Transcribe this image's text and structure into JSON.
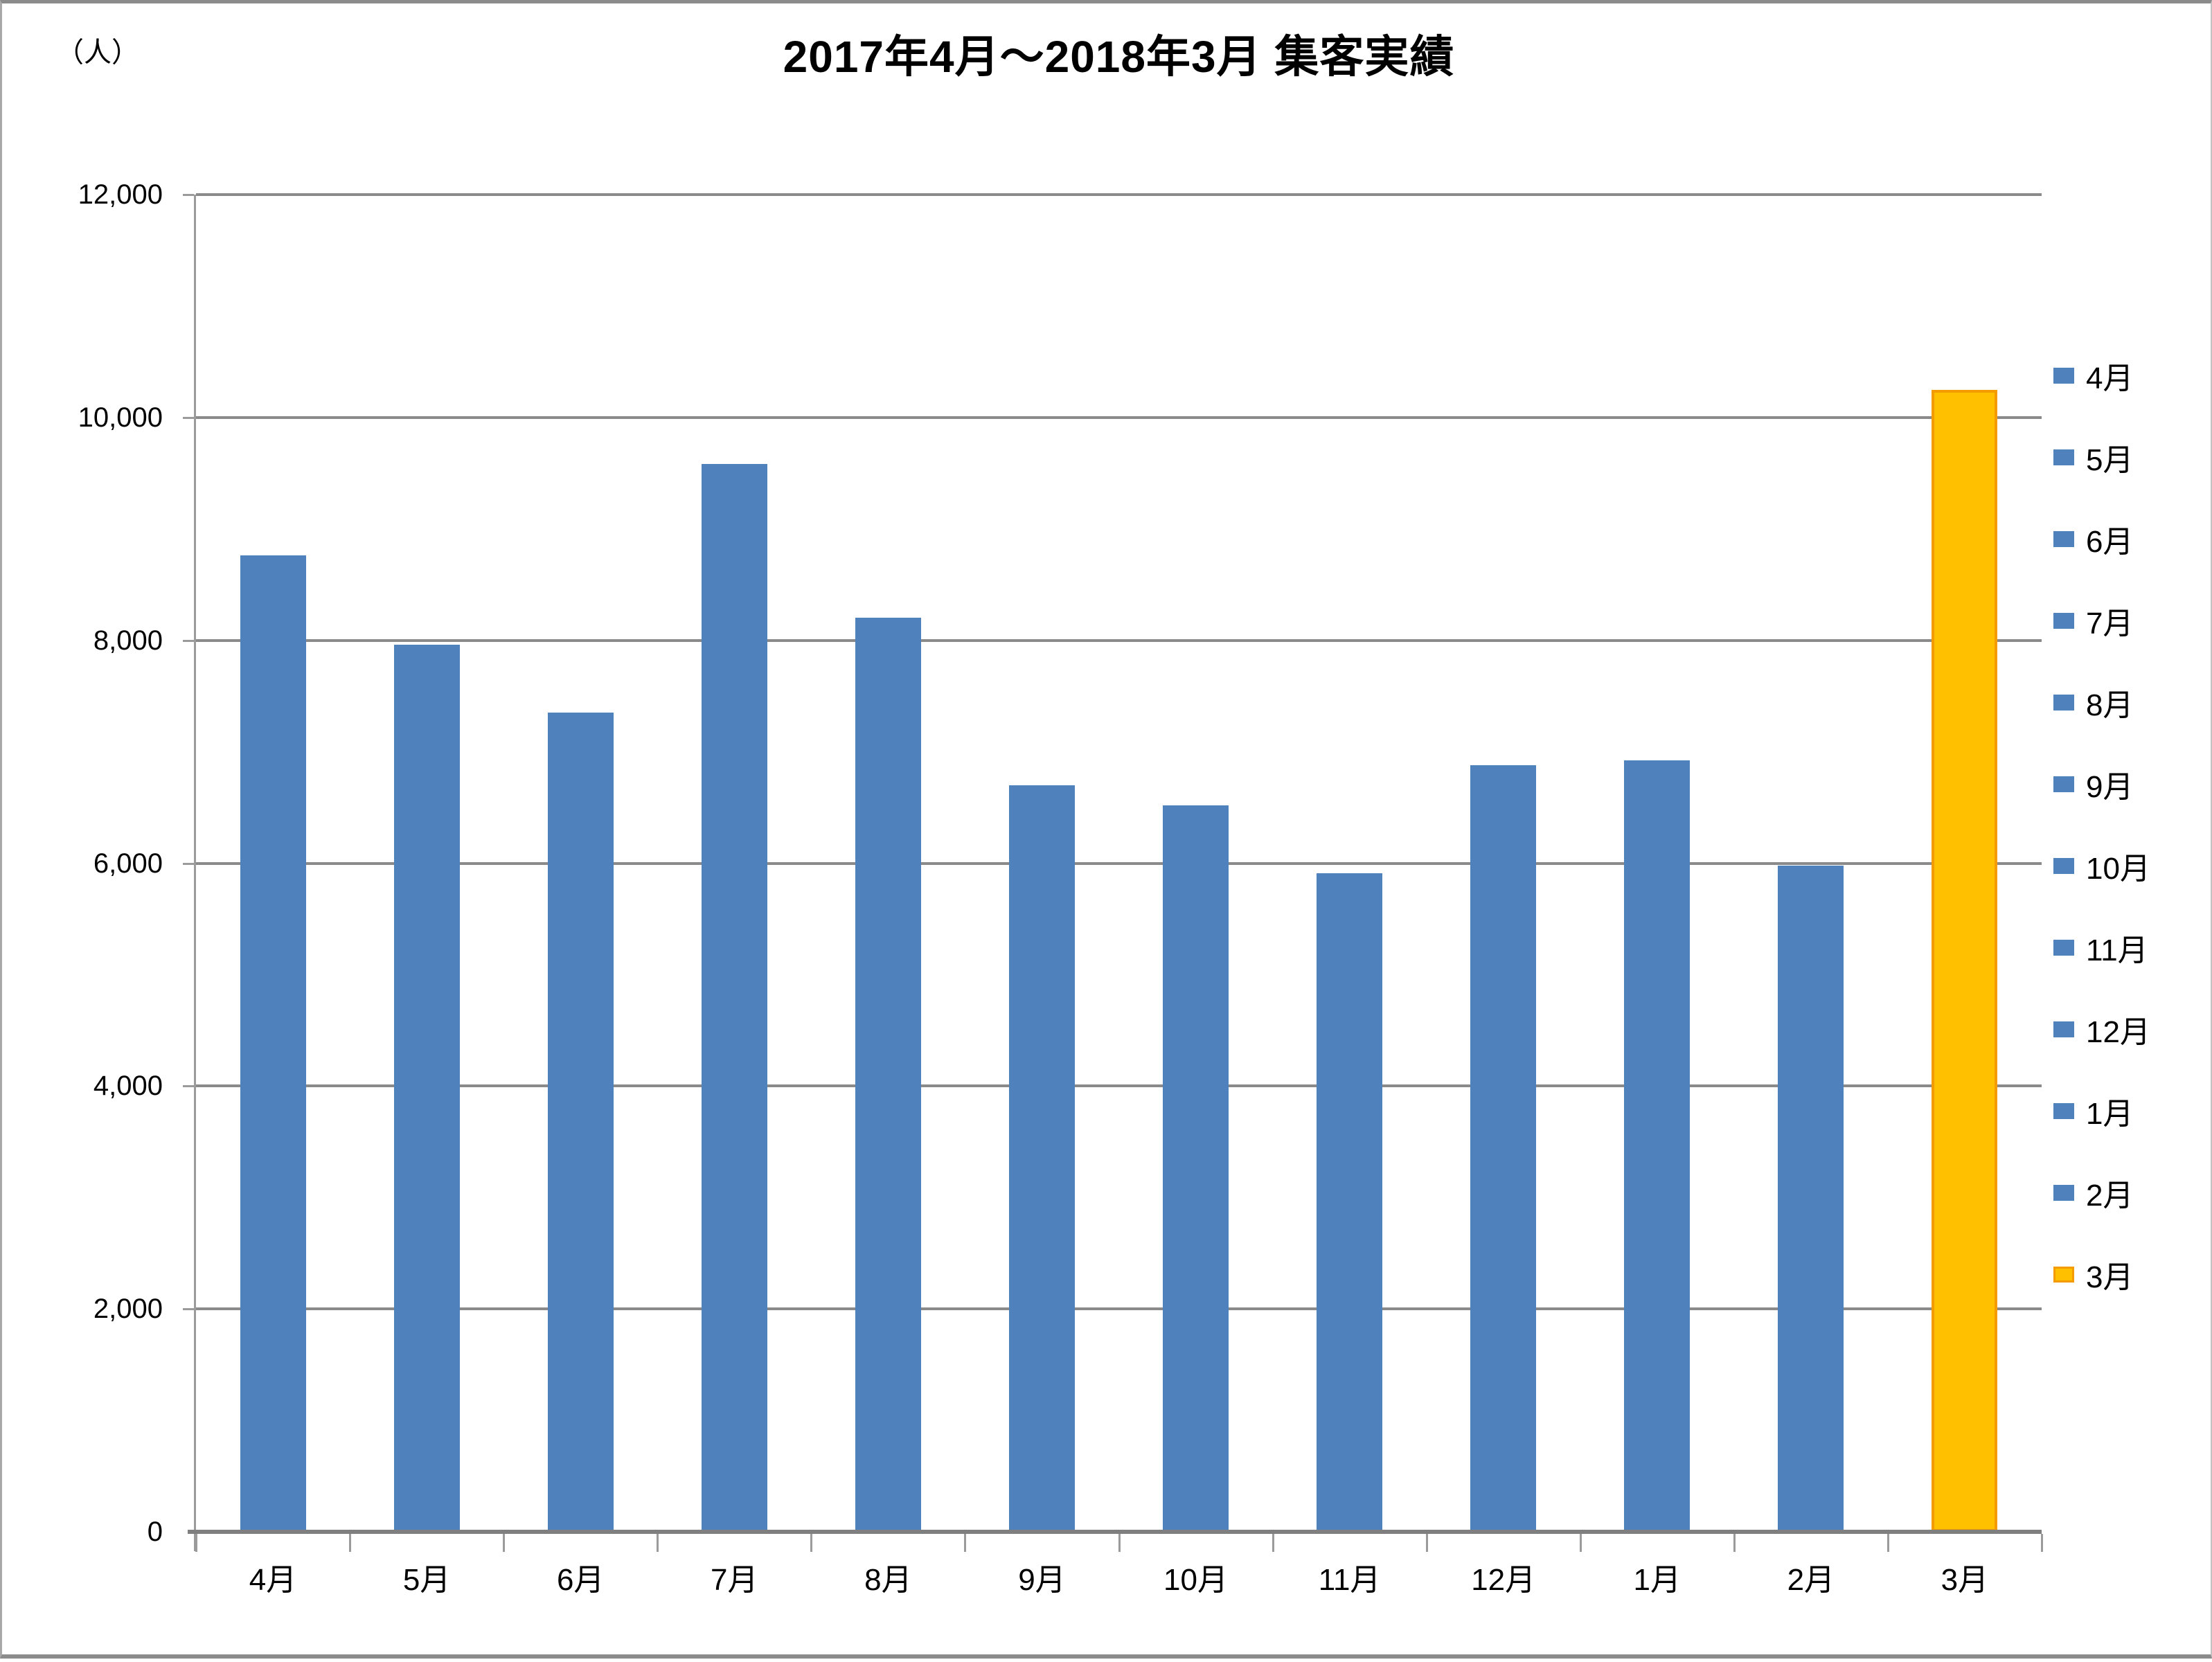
{
  "header": {
    "title": "2017年4月～2018年3月 集客実績",
    "unit_label": "（人）"
  },
  "chart_data": {
    "type": "bar",
    "title": "2017年4月～2018年3月 集客実績",
    "unit_label": "（人）",
    "categories": [
      "4月",
      "5月",
      "6月",
      "7月",
      "8月",
      "9月",
      "10月",
      "11月",
      "12月",
      "1月",
      "2月",
      "3月"
    ],
    "values": [
      8760,
      7960,
      7350,
      9580,
      8200,
      6700,
      6520,
      5910,
      6880,
      6920,
      5980,
      10250
    ],
    "xlabel": "",
    "ylabel": "（人）",
    "ylim": [
      0,
      12000
    ],
    "ytick_interval": 2000,
    "ytick_labels": [
      "12,000",
      "10,000",
      "8,000",
      "6,000",
      "4,000",
      "2,000",
      "0"
    ],
    "grid": true,
    "legend_position": "right",
    "colors": {
      "bar_default": "#4F81BD",
      "bar_highlight": "#FFC000",
      "bar_highlight_border": "#F49B00",
      "gridline": "#8A8A8A",
      "axis": "#7F7F7F"
    },
    "highlight_index": 11,
    "legend_entries": [
      {
        "label": "4月",
        "color": "#4F81BD"
      },
      {
        "label": "5月",
        "color": "#4F81BD"
      },
      {
        "label": "6月",
        "color": "#4F81BD"
      },
      {
        "label": "7月",
        "color": "#4F81BD"
      },
      {
        "label": "8月",
        "color": "#4F81BD"
      },
      {
        "label": "9月",
        "color": "#4F81BD"
      },
      {
        "label": "10月",
        "color": "#4F81BD"
      },
      {
        "label": "11月",
        "color": "#4F81BD"
      },
      {
        "label": "12月",
        "color": "#4F81BD"
      },
      {
        "label": "1月",
        "color": "#4F81BD"
      },
      {
        "label": "2月",
        "color": "#4F81BD"
      },
      {
        "label": "3月",
        "color": "#FFC000",
        "border": "#F49B00"
      }
    ]
  }
}
